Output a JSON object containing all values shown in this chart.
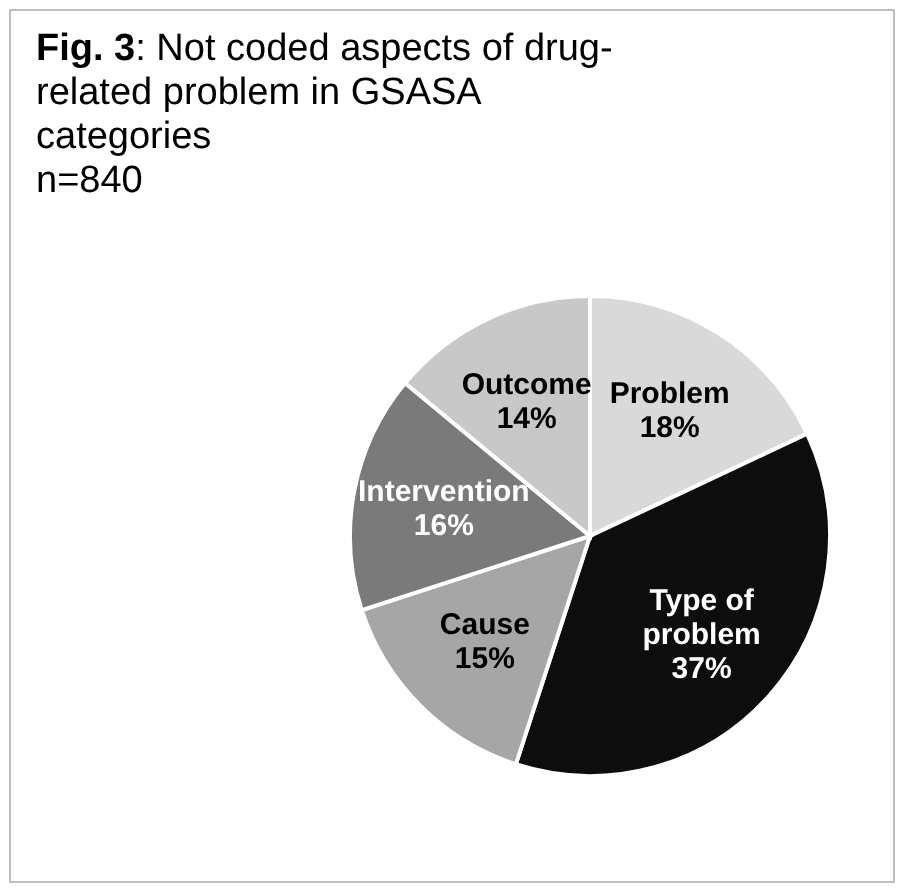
{
  "chart_data": {
    "type": "pie",
    "title": "Fig. 3: Not coded aspects of drug-related problem in GSASA categories",
    "subtitle": "n=840",
    "categories": [
      "Problem",
      "Type of problem",
      "Cause",
      "Intervention",
      "Outcome"
    ],
    "values": [
      18,
      37,
      15,
      16,
      14
    ],
    "value_labels": [
      "18%",
      "37%",
      "15%",
      "16%",
      "14%"
    ],
    "colors": [
      "#d9d9d9",
      "#0d0d0d",
      "#a6a6a6",
      "#7a7a7a",
      "#c8c8c8"
    ]
  }
}
